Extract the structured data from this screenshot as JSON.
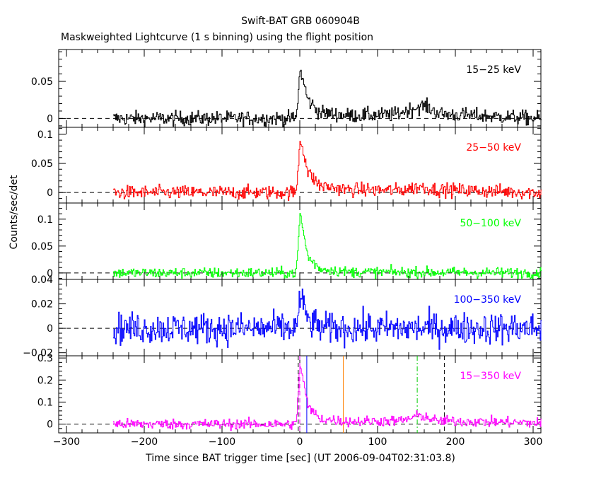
{
  "title": "Swift-BAT GRB 060904B",
  "subtitle": "Maskweighted Lightcurve (1 s binning) using the flight position",
  "chart_data": {
    "type": "line",
    "xlabel": "Time since BAT trigger time [sec] (UT 2006-09-04T02:31:03.8)",
    "ylabel": "Counts/sec/det",
    "xlim": [
      -310,
      310
    ],
    "xticks": [
      -300,
      -200,
      -100,
      0,
      100,
      200,
      300
    ],
    "grid": false,
    "data_start": -240,
    "data_end": 310,
    "panels": [
      {
        "name": "15-25 keV",
        "color": "#000000",
        "ylim": [
          -0.012,
          0.093
        ],
        "yticks": [
          0,
          0.05
        ],
        "ytick_labels": [
          "0",
          "0.05"
        ],
        "profile": [
          [
            -240,
            0.0
          ],
          [
            -5,
            0.0
          ],
          [
            0,
            0.065
          ],
          [
            3,
            0.055
          ],
          [
            10,
            0.025
          ],
          [
            25,
            0.008
          ],
          [
            60,
            0.004
          ],
          [
            120,
            0.005
          ],
          [
            150,
            0.015
          ],
          [
            160,
            0.017
          ],
          [
            180,
            0.006
          ],
          [
            310,
            0.0
          ]
        ],
        "noise": 0.005
      },
      {
        "name": "25-50 keV",
        "color": "#ff0000",
        "ylim": [
          -0.018,
          0.112
        ],
        "yticks": [
          0,
          0.05,
          0.1
        ],
        "ytick_labels": [
          "0",
          "0.05",
          "0.1"
        ],
        "profile": [
          [
            -240,
            0.0
          ],
          [
            -5,
            0.0
          ],
          [
            0,
            0.09
          ],
          [
            3,
            0.08
          ],
          [
            10,
            0.035
          ],
          [
            25,
            0.012
          ],
          [
            60,
            0.005
          ],
          [
            130,
            0.004
          ],
          [
            155,
            0.01
          ],
          [
            175,
            0.005
          ],
          [
            310,
            0.0
          ]
        ],
        "noise": 0.006
      },
      {
        "name": "50-100 keV",
        "color": "#00ff00",
        "ylim": [
          -0.012,
          0.13
        ],
        "yticks": [
          0,
          0.05,
          0.1
        ],
        "ytick_labels": [
          "0",
          "0.05",
          "0.1"
        ],
        "profile": [
          [
            -240,
            0.0
          ],
          [
            -5,
            0.0
          ],
          [
            0,
            0.11
          ],
          [
            3,
            0.085
          ],
          [
            10,
            0.03
          ],
          [
            25,
            0.008
          ],
          [
            60,
            0.002
          ],
          [
            310,
            0.0
          ]
        ],
        "noise": 0.005
      },
      {
        "name": "100-350 keV",
        "color": "#0000ff",
        "ylim": [
          -0.0225,
          0.04
        ],
        "yticks": [
          -0.02,
          0,
          0.02,
          0.04
        ],
        "ytick_labels": [
          "−0.02",
          "0",
          "0.02",
          "0.04"
        ],
        "profile": [
          [
            -240,
            0.0
          ],
          [
            -5,
            0.0
          ],
          [
            0,
            0.025
          ],
          [
            4,
            0.018
          ],
          [
            12,
            0.005
          ],
          [
            30,
            0.0
          ],
          [
            310,
            0.0
          ]
        ],
        "noise": 0.0065
      },
      {
        "name": "15-350 keV",
        "color": "#ff00ff",
        "ylim": [
          -0.04,
          0.31
        ],
        "yticks": [
          0,
          0.1,
          0.2,
          0.3
        ],
        "ytick_labels": [
          "0",
          "0.1",
          "0.2",
          "0.3"
        ],
        "profile": [
          [
            -240,
            0.0
          ],
          [
            -5,
            0.0
          ],
          [
            0,
            0.27
          ],
          [
            3,
            0.22
          ],
          [
            10,
            0.08
          ],
          [
            25,
            0.025
          ],
          [
            60,
            0.012
          ],
          [
            130,
            0.015
          ],
          [
            155,
            0.04
          ],
          [
            175,
            0.015
          ],
          [
            310,
            0.005
          ]
        ],
        "noise": 0.012,
        "markers": [
          {
            "x": -2,
            "color": "#000000",
            "style": "dashed"
          },
          {
            "x": 0,
            "color": "#ff00ff",
            "style": "dashed"
          },
          {
            "x": 9,
            "color": "#0000ff",
            "style": "solid"
          },
          {
            "x": 56,
            "color": "#ff8000",
            "style": "solid"
          },
          {
            "x": 151,
            "color": "#00cc00",
            "style": "dashdot"
          },
          {
            "x": 186,
            "color": "#000000",
            "style": "dashed"
          }
        ]
      }
    ]
  }
}
